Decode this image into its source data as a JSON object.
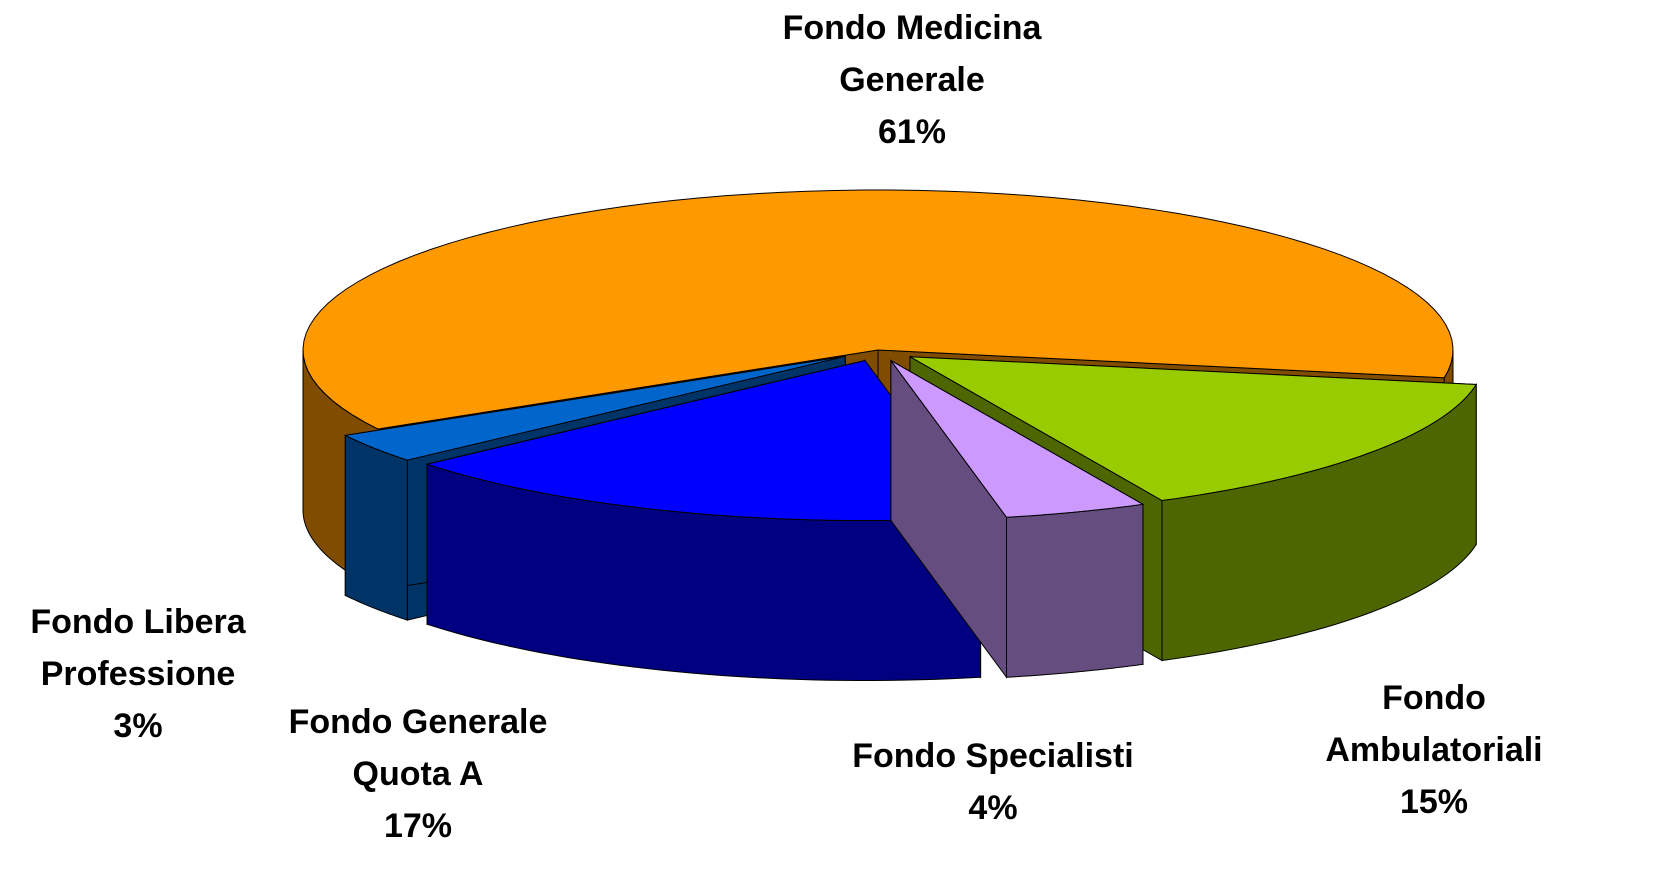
{
  "chart_data": {
    "type": "pie3d",
    "categories": [
      "Fondo Ambulatoriali",
      "Fondo Specialisti",
      "Fondo Generale Quota A",
      "Fondo Libera Professione",
      "Fondo Medicina Generale"
    ],
    "values": [
      15,
      4,
      17,
      3,
      61
    ],
    "value_labels": [
      "15%",
      "4%",
      "17%",
      "3%",
      "61%"
    ],
    "colors": [
      "#99cc00",
      "#cc99ff",
      "#0000ff",
      "#0066cc",
      "#ff9900"
    ]
  }
}
